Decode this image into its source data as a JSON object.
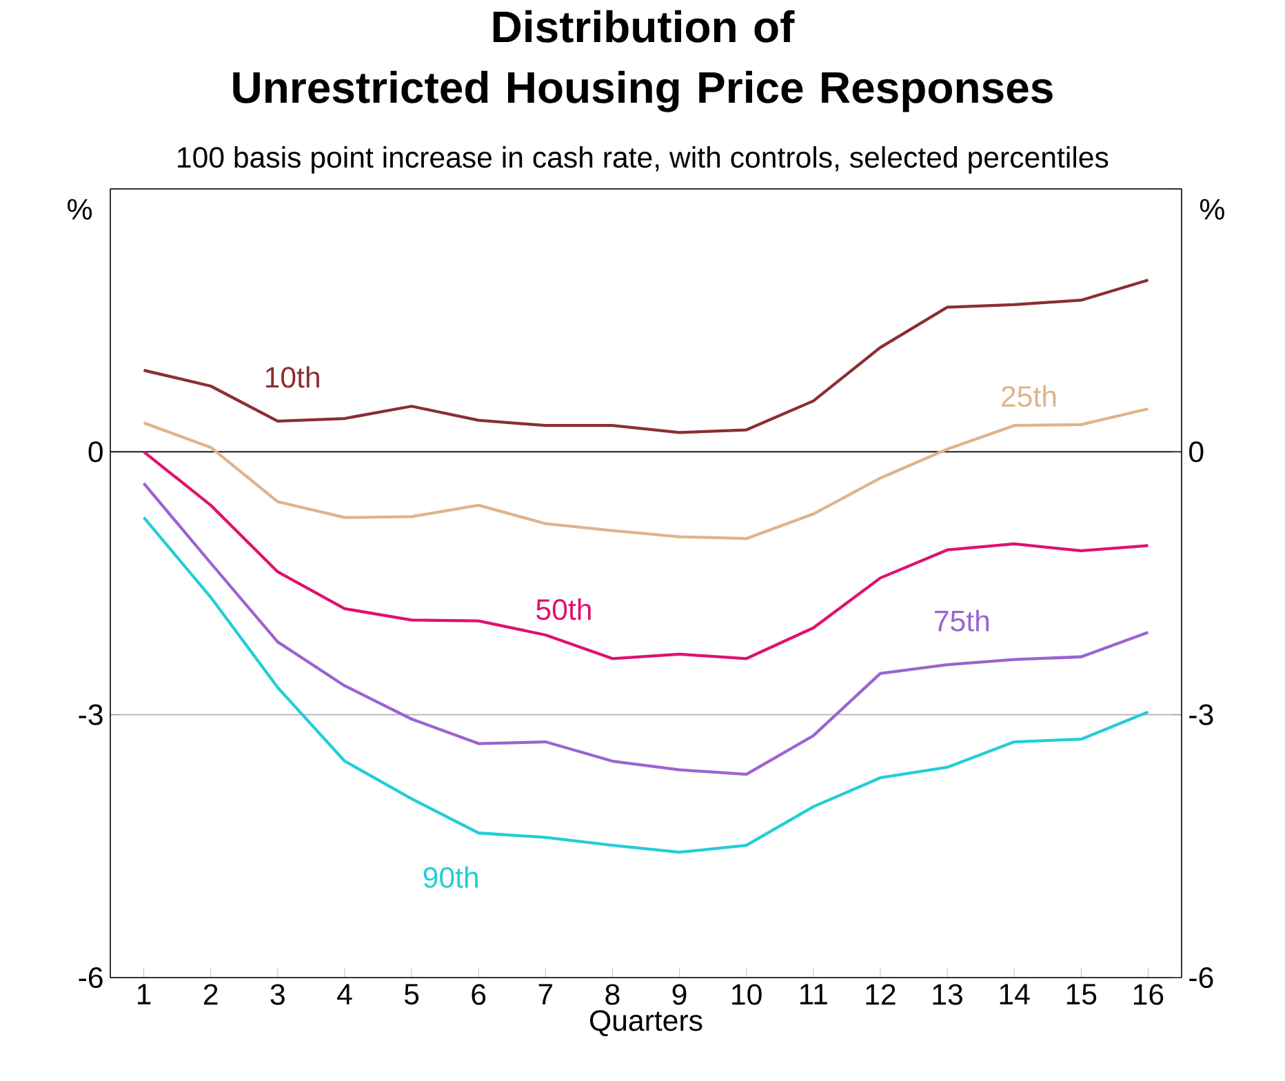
{
  "chart_data": {
    "type": "line",
    "title": "Distribution of\nUnrestricted Housing Price Responses",
    "subtitle": "100 basis point increase in cash rate, with controls, selected percentiles",
    "xlabel": "Quarters",
    "ylabel": "%",
    "y2label": "%",
    "categories": [
      "1",
      "2",
      "3",
      "4",
      "5",
      "6",
      "7",
      "8",
      "9",
      "10",
      "11",
      "12",
      "13",
      "14",
      "15",
      "16"
    ],
    "series": [
      {
        "name": "10th",
        "color": "#8b2e33",
        "values": [
          0.93,
          0.75,
          0.35,
          0.38,
          0.52,
          0.36,
          0.3,
          0.3,
          0.22,
          0.25,
          0.58,
          1.19,
          1.65,
          1.68,
          1.73,
          1.96
        ]
      },
      {
        "name": "25th",
        "color": "#deb48c",
        "values": [
          0.33,
          0.05,
          -0.57,
          -0.75,
          -0.74,
          -0.61,
          -0.82,
          -0.9,
          -0.97,
          -0.99,
          -0.71,
          -0.3,
          0.03,
          0.3,
          0.31,
          0.49
        ]
      },
      {
        "name": "50th",
        "color": "#e0116f",
        "values": [
          0.0,
          -0.61,
          -1.37,
          -1.79,
          -1.92,
          -1.93,
          -2.09,
          -2.36,
          -2.31,
          -2.36,
          -2.01,
          -1.44,
          -1.12,
          -1.05,
          -1.13,
          -1.07
        ]
      },
      {
        "name": "75th",
        "color": "#9b63d0",
        "values": [
          -0.36,
          -1.27,
          -2.17,
          -2.67,
          -3.05,
          -3.33,
          -3.31,
          -3.53,
          -3.63,
          -3.68,
          -3.24,
          -2.53,
          -2.43,
          -2.37,
          -2.34,
          -2.06
        ]
      },
      {
        "name": "90th",
        "color": "#22cdd8",
        "values": [
          -0.75,
          -1.66,
          -2.69,
          -3.53,
          -3.96,
          -4.35,
          -4.4,
          -4.49,
          -4.57,
          -4.49,
          -4.05,
          -3.72,
          -3.6,
          -3.31,
          -3.28,
          -2.97
        ]
      }
    ],
    "ylim": [
      -6,
      3
    ],
    "yticks": [
      -6,
      -3,
      0,
      {
        "value": 3,
        "label": null
      }
    ],
    "y2lim": [
      -6,
      3
    ],
    "y2ticks": [
      -6,
      -3,
      0,
      {
        "value": 3,
        "label": null
      }
    ],
    "grid": "y",
    "marker": "none",
    "line_style": "solid",
    "ref_lines": [
      {
        "axis": "y",
        "value": 0,
        "color": "#000000"
      }
    ]
  }
}
